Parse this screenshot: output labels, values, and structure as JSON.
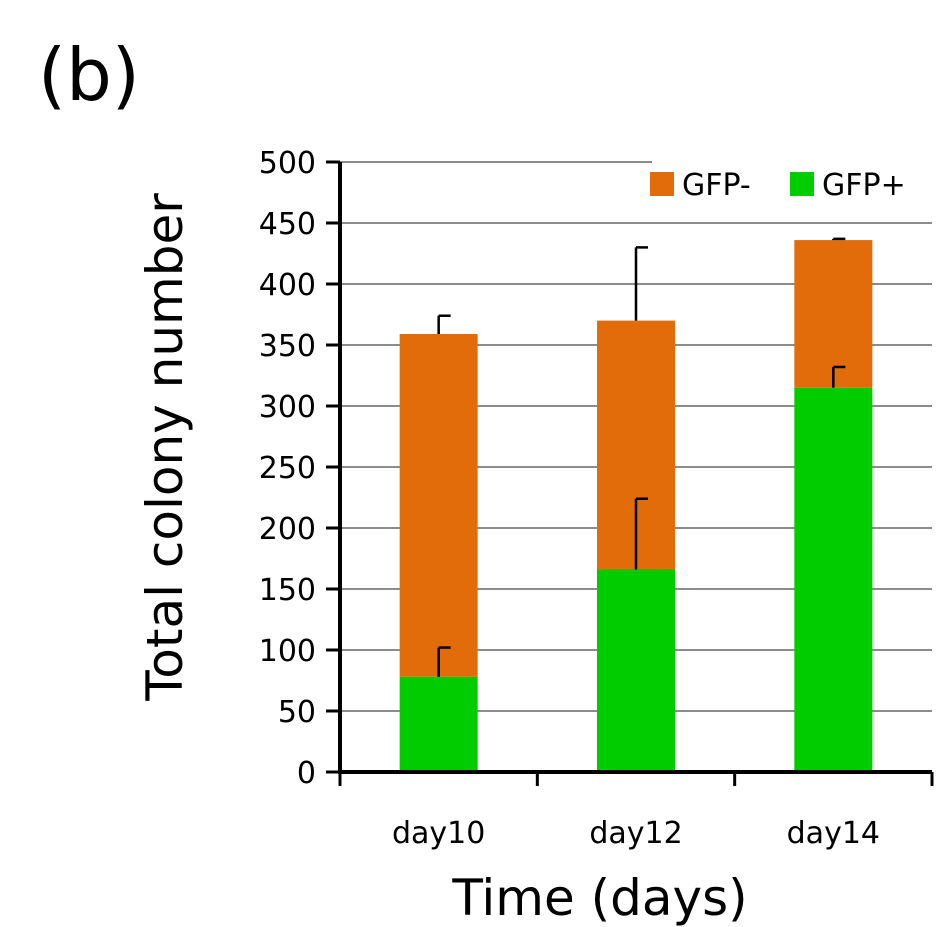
{
  "panel_label": "(b)",
  "colors": {
    "gfp_minus": "#E36C0A",
    "gfp_plus": "#00CC00",
    "grid": "#8C8C8C",
    "axis": "#000000"
  },
  "chart_data": {
    "type": "bar",
    "stacked": true,
    "categories": [
      "day10",
      "day12",
      "day14"
    ],
    "series": [
      {
        "name": "GFP+",
        "color": "#00CC00",
        "values": [
          78,
          166,
          315
        ],
        "error": [
          24,
          58,
          17
        ]
      },
      {
        "name": "GFP-",
        "color": "#E36C0A",
        "values": [
          281,
          204,
          121
        ],
        "error": [
          15,
          60,
          1
        ]
      }
    ],
    "legend_order": [
      "GFP-",
      "GFP+"
    ],
    "legend_position": "top-right",
    "xlabel": "Time (days)",
    "ylabel": "Total colony number",
    "ylim": [
      0,
      500
    ],
    "yticks": [
      0,
      50,
      100,
      150,
      200,
      250,
      300,
      350,
      400,
      450,
      500
    ],
    "grid": true
  }
}
